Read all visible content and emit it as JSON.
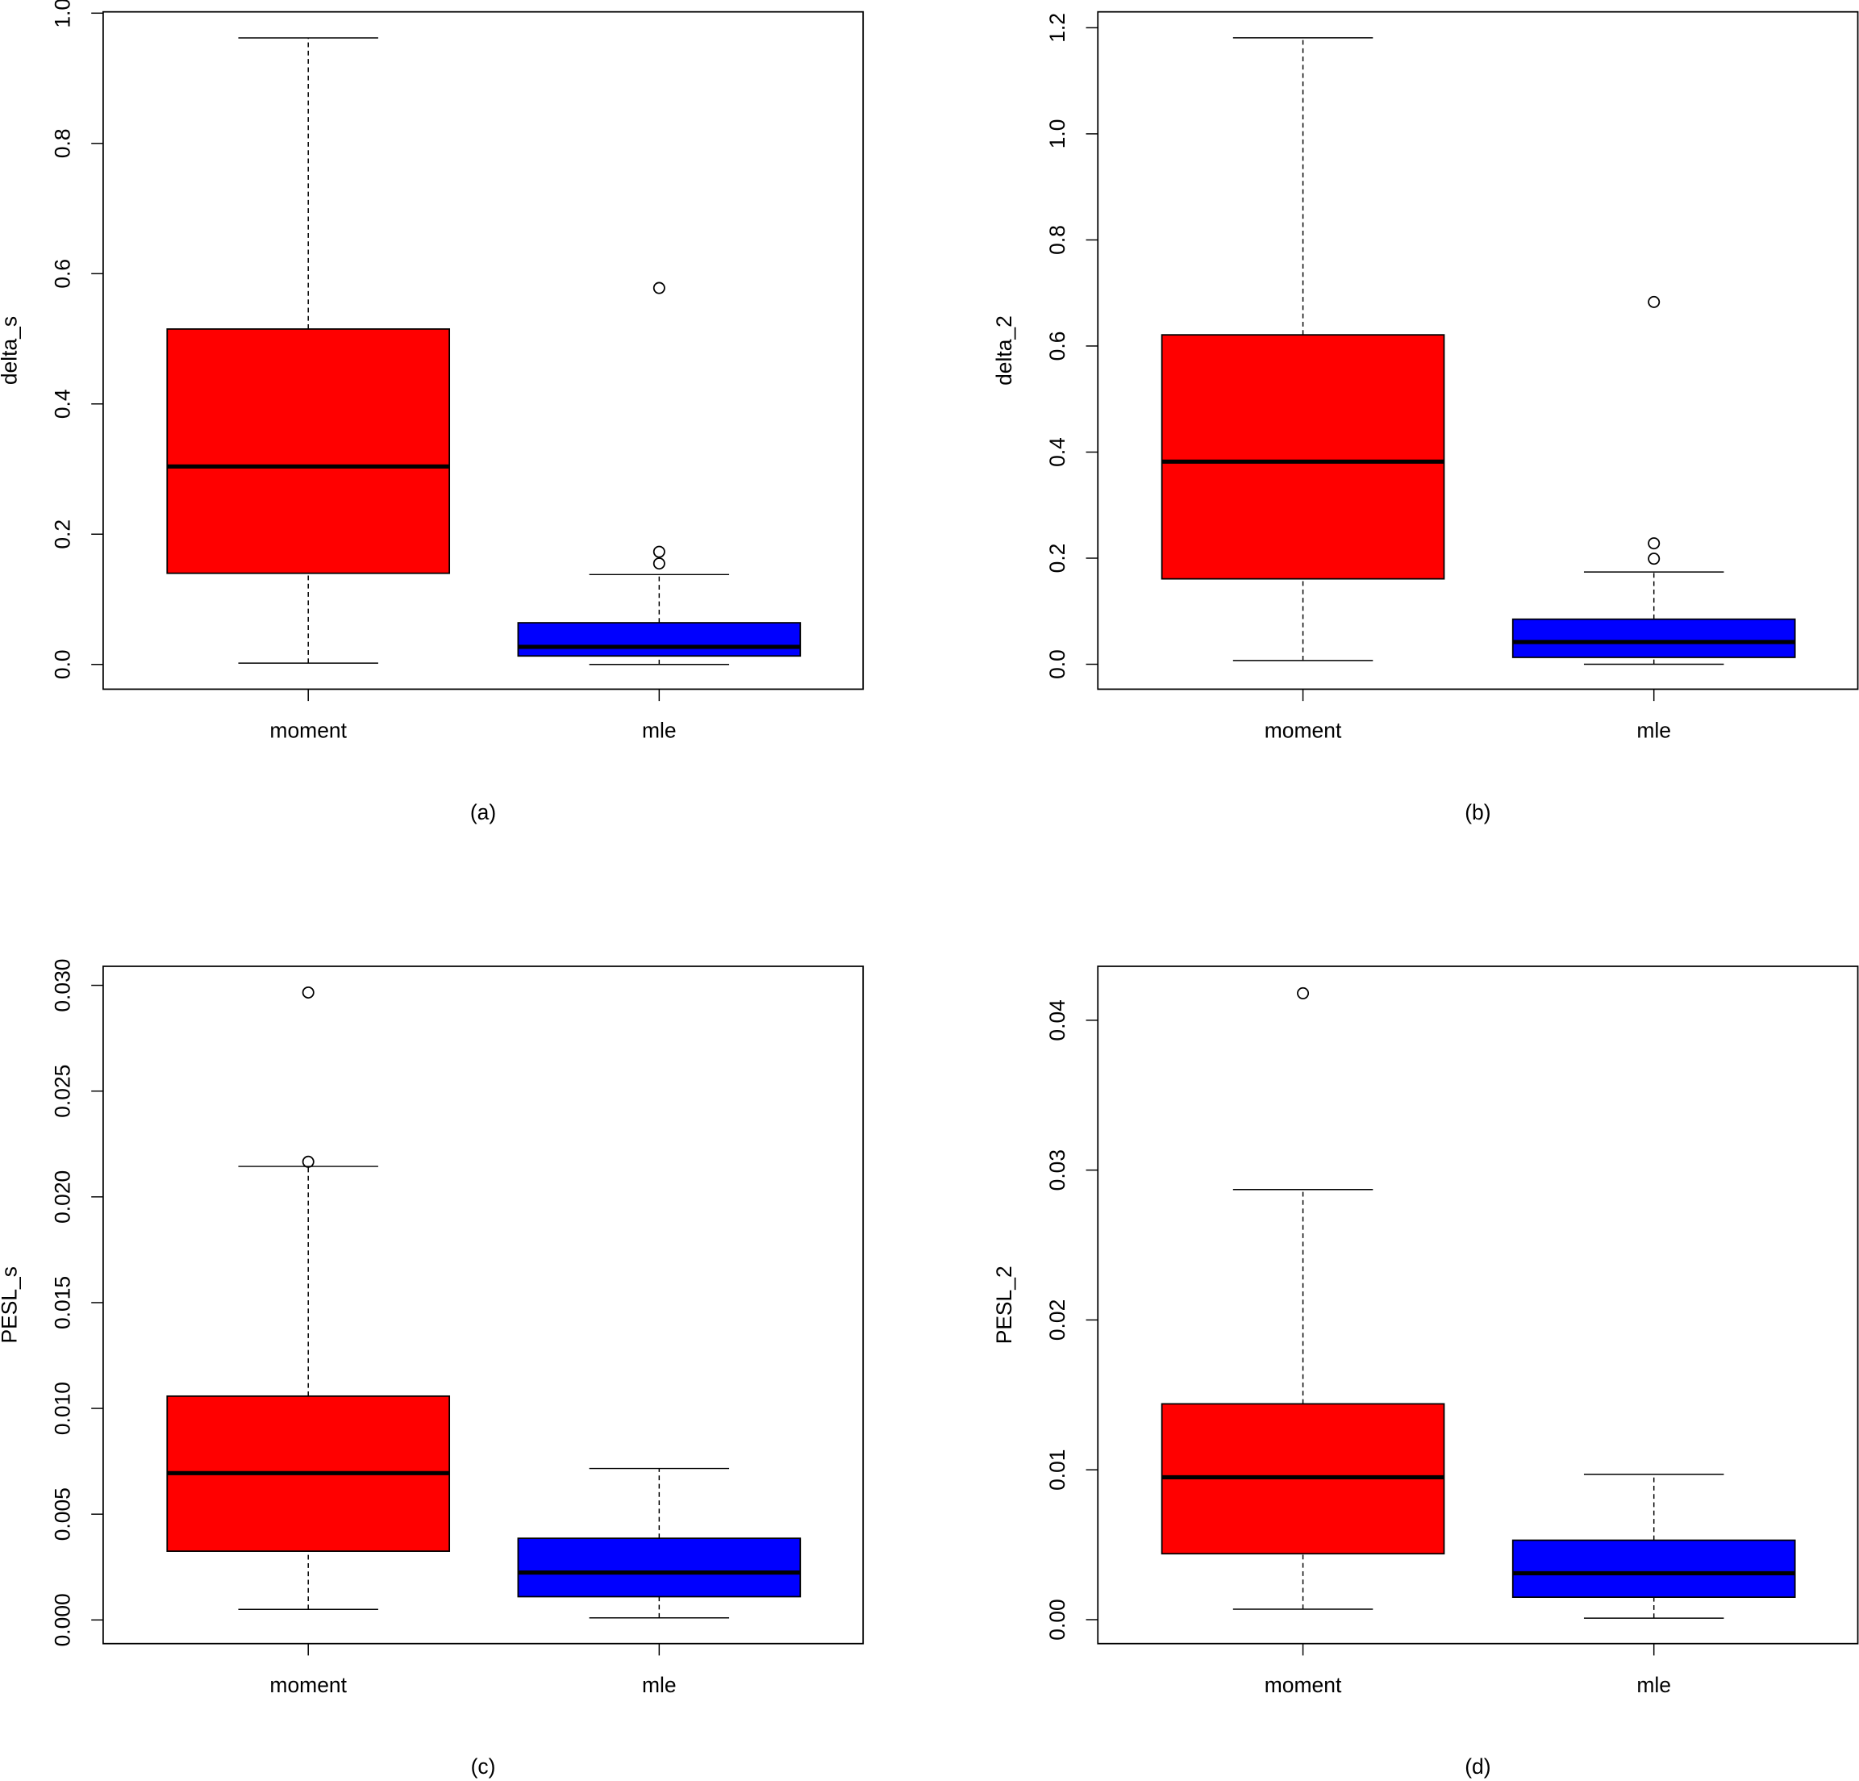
{
  "chart_data": [
    {
      "type": "box",
      "ylabel": "delta_s",
      "caption": "(a)",
      "categories": [
        "moment",
        "mle"
      ],
      "ylim": [
        -0.038,
        1.002
      ],
      "yticks": [
        {
          "value": 0,
          "label": "0.0"
        },
        0.2,
        0.4,
        0.6,
        0.8,
        {
          "value": 1,
          "label": "1.0"
        }
      ],
      "boxes": [
        {
          "color": "#ff0000",
          "whisker_low": 0.002,
          "q1": 0.14,
          "median": 0.304,
          "q3": 0.515,
          "whisker_high": 0.962,
          "outliers": []
        },
        {
          "color": "#0000ff",
          "whisker_low": 0.0,
          "q1": 0.013,
          "median": 0.027,
          "q3": 0.064,
          "whisker_high": 0.138,
          "outliers": [
            0.155,
            0.173,
            0.578
          ]
        }
      ]
    },
    {
      "type": "box",
      "ylabel": "delta_2",
      "caption": "(b)",
      "categories": [
        "moment",
        "mle"
      ],
      "ylim": [
        -0.047,
        1.23
      ],
      "yticks": [
        {
          "value": 0,
          "label": "0.0"
        },
        0.2,
        0.4,
        0.6,
        0.8,
        {
          "value": 1,
          "label": "1.0"
        },
        1.2
      ],
      "boxes": [
        {
          "color": "#ff0000",
          "whisker_low": 0.007,
          "q1": 0.161,
          "median": 0.382,
          "q3": 0.621,
          "whisker_high": 1.181,
          "outliers": []
        },
        {
          "color": "#0000ff",
          "whisker_low": 0.0,
          "q1": 0.013,
          "median": 0.042,
          "q3": 0.085,
          "whisker_high": 0.174,
          "outliers": [
            0.199,
            0.228,
            0.683
          ]
        }
      ]
    },
    {
      "type": "box",
      "ylabel": "PESL_s",
      "caption": "(c)",
      "categories": [
        "moment",
        "mle"
      ],
      "ylim": [
        -0.00112,
        0.0309
      ],
      "yticks": [
        {
          "value": 0,
          "label": "0.000"
        },
        0.005,
        {
          "value": 0.01,
          "label": "0.010"
        },
        0.015,
        {
          "value": 0.02,
          "label": "0.020"
        },
        0.025,
        {
          "value": 0.03,
          "label": "0.030"
        }
      ],
      "boxes": [
        {
          "color": "#ff0000",
          "whisker_low": 0.0005,
          "q1": 0.00325,
          "median": 0.00694,
          "q3": 0.01058,
          "whisker_high": 0.02144,
          "outliers": [
            0.02166,
            0.02966
          ]
        },
        {
          "color": "#0000ff",
          "whisker_low": 0.0001,
          "q1": 0.0011,
          "median": 0.00224,
          "q3": 0.00386,
          "whisker_high": 0.00716,
          "outliers": []
        }
      ]
    },
    {
      "type": "box",
      "ylabel": "PESL_2",
      "caption": "(d)",
      "categories": [
        "moment",
        "mle"
      ],
      "ylim": [
        -0.0016,
        0.0436
      ],
      "yticks": [
        {
          "value": 0,
          "label": "0.00"
        },
        0.01,
        0.02,
        0.03,
        0.04
      ],
      "boxes": [
        {
          "color": "#ff0000",
          "whisker_low": 0.0007,
          "q1": 0.0044,
          "median": 0.0095,
          "q3": 0.0144,
          "whisker_high": 0.0287,
          "outliers": [
            0.0418
          ]
        },
        {
          "color": "#0000ff",
          "whisker_low": 0.0001,
          "q1": 0.0015,
          "median": 0.0031,
          "q3": 0.0053,
          "whisker_high": 0.0097,
          "outliers": []
        }
      ]
    }
  ]
}
